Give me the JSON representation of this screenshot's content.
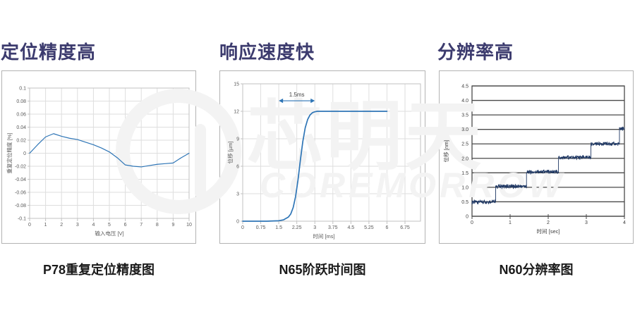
{
  "banner": {
    "background": "#FFFFFF"
  },
  "sections": [
    {
      "title": "定位精度高",
      "caption": "P78重复定位精度图"
    },
    {
      "title": "响应速度快",
      "caption": "N65阶跃时间图"
    },
    {
      "title": "分辨率高",
      "caption": "N60分辨率图"
    }
  ],
  "watermark": {
    "text_cn": "芯明天",
    "text_en": "COREMORROW"
  },
  "styles": {
    "title_color": "#3C3B6E",
    "caption_color": "#1A1A1A",
    "watermark_color": "#F3F3F3",
    "light_grid_color": "#DEDEDE",
    "light_frame_color": "#C2C2C2",
    "dark_grid_color": "#4A4A4A",
    "tick_label_color": "#595959",
    "dark_tick_label_color": "#3D3D3D"
  },
  "chart_data": [
    {
      "type": "line",
      "caption": "P78重复定位精度图",
      "xlabel": "输入电压 [V]",
      "ylabel": "重复定位精度 [%]",
      "xlim": [
        0,
        10
      ],
      "ylim": [
        -0.1,
        0.1
      ],
      "grid": "both-light",
      "x_tick_values": [
        0,
        1,
        2,
        3,
        4,
        5,
        6,
        7,
        8,
        9,
        10
      ],
      "x_tick_labels": [
        "0",
        "1",
        "2",
        "3",
        "4",
        "5",
        "6",
        "7",
        "8",
        "9",
        "10"
      ],
      "y_tick_values": [
        0.1,
        0.08,
        0.06,
        0.04,
        0.02,
        0,
        -0.02,
        -0.04,
        -0.06,
        -0.08,
        -0.1
      ],
      "y_tick_labels": [
        "0.1",
        "0.08",
        "0.06",
        "0.04",
        "0.02",
        "0",
        "-0.02",
        "-0.04",
        "-0.06",
        "-0.08",
        "-0.1"
      ],
      "line_color": "#2E75B6",
      "x": [
        0,
        0.5,
        1,
        1.5,
        2,
        2.5,
        3,
        3.5,
        4,
        4.5,
        5,
        5.5,
        6,
        6.5,
        7,
        7.5,
        8,
        8.5,
        9,
        9.5,
        10
      ],
      "y": [
        0,
        0.013,
        0.025,
        0.03,
        0.026,
        0.023,
        0.021,
        0.017,
        0.013,
        0.008,
        0.002,
        -0.007,
        -0.018,
        -0.02,
        -0.021,
        -0.019,
        -0.017,
        -0.016,
        -0.015,
        -0.007,
        0
      ]
    },
    {
      "type": "line",
      "caption": "N65阶跃时间图",
      "xlabel": "时间 [ms]",
      "ylabel": "位移 [µm]",
      "xlim": [
        0,
        6.75
      ],
      "ylim": [
        0,
        15
      ],
      "grid": "both-light",
      "x_tick_values": [
        0,
        0.75,
        1.5,
        2.25,
        3,
        3.75,
        4.5,
        5.25,
        6,
        6.75
      ],
      "x_tick_labels": [
        "0",
        "0.75",
        "1.5",
        "2.25",
        "3",
        "3.75",
        "4.5",
        "5.25",
        "6",
        "6.75"
      ],
      "y_tick_values": [
        0,
        3,
        6,
        9,
        12,
        15
      ],
      "y_tick_labels": [
        "0",
        "3",
        "6",
        "9",
        "12",
        "15"
      ],
      "line_color": "#2E75B6",
      "annotation": {
        "label": "1.5ms",
        "x_from": 1.5,
        "x_to": 3.0,
        "y": 13.15
      },
      "x": [
        0,
        1.0,
        1.5,
        1.7,
        1.9,
        2.0,
        2.1,
        2.2,
        2.3,
        2.4,
        2.5,
        2.6,
        2.7,
        2.8,
        2.9,
        3.0,
        3.1,
        3.25,
        3.5,
        4.0,
        5.0,
        6.0
      ],
      "y": [
        0,
        0,
        0.05,
        0.15,
        0.45,
        0.8,
        1.5,
        2.7,
        4.5,
        6.7,
        8.7,
        10.2,
        11.1,
        11.6,
        11.85,
        11.95,
        12,
        12,
        12,
        12,
        12,
        12
      ]
    },
    {
      "type": "line",
      "caption": "N60分辨率图",
      "xlabel": "时间 [sec]",
      "ylabel": "位移 [nm]",
      "xlim": [
        0,
        4
      ],
      "ylim": [
        0,
        4.5
      ],
      "grid": "horizontal-dark",
      "x_tick_values": [
        0,
        1,
        2,
        3,
        4
      ],
      "x_tick_labels": [
        "0",
        "1",
        "2",
        "3",
        "4"
      ],
      "y_tick_values": [
        0,
        0.5,
        1.0,
        1.5,
        2.0,
        2.5,
        3.0,
        3.5,
        4.0,
        4.5
      ],
      "y_tick_labels": [
        "0",
        "0.5",
        "1.0",
        "1.5",
        "2.0",
        "2.5",
        "3.0",
        "3.5",
        "4.0",
        "4.5"
      ],
      "line_color": "#1F3864",
      "noise": 0.055,
      "steps": [
        {
          "x0": 0,
          "x1": 0.62,
          "level": 0.5
        },
        {
          "x0": 0.62,
          "x1": 1.43,
          "level": 1.03
        },
        {
          "x0": 1.43,
          "x1": 2.27,
          "level": 1.53
        },
        {
          "x0": 2.27,
          "x1": 3.12,
          "level": 2.03
        },
        {
          "x0": 3.12,
          "x1": 3.87,
          "level": 2.5
        },
        {
          "x0": 3.87,
          "x1": 4.0,
          "level": 3.02
        }
      ]
    }
  ]
}
